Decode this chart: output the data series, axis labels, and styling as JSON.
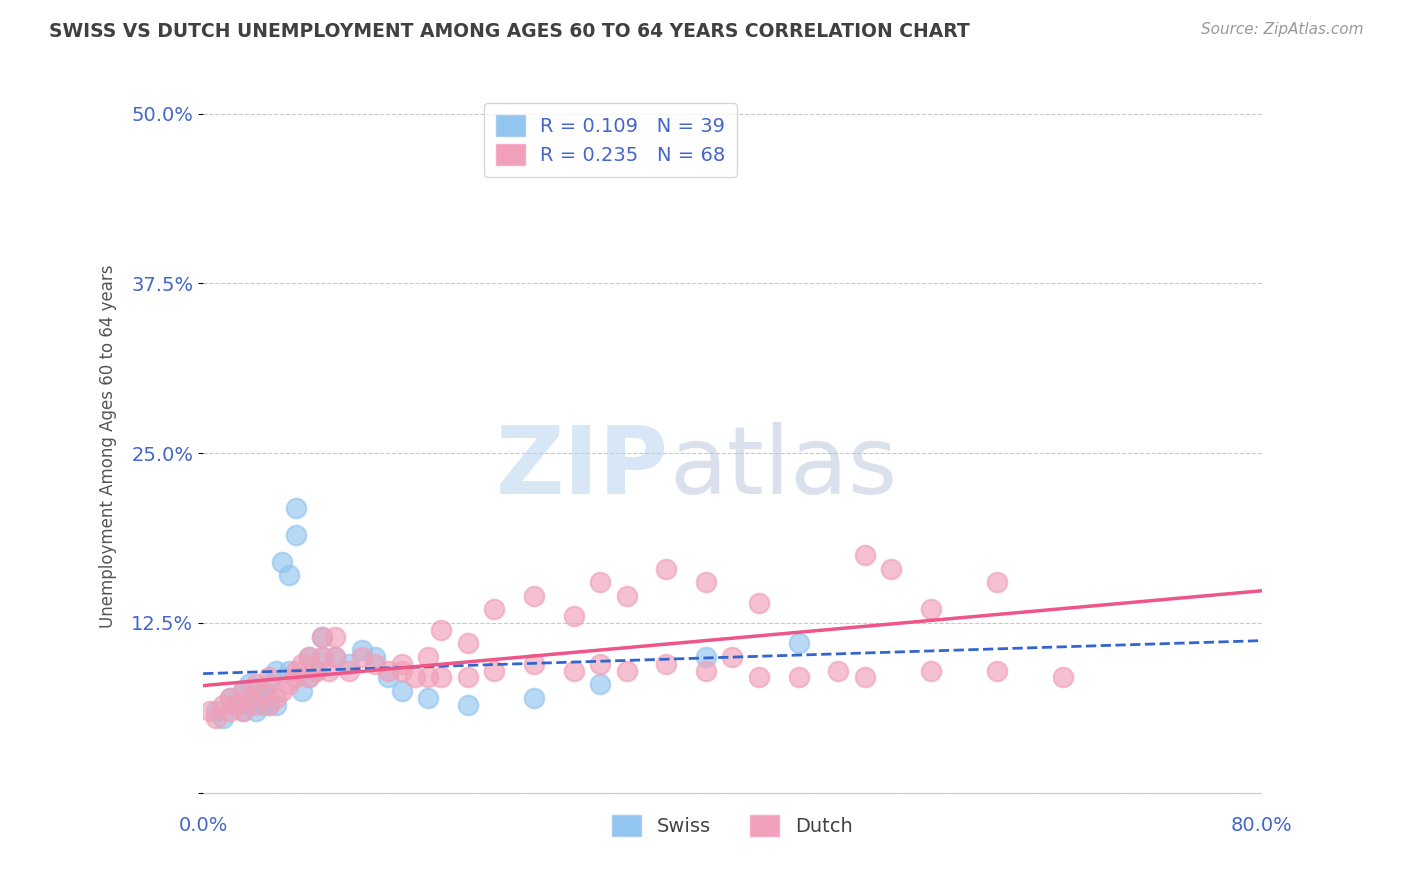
{
  "title": "SWISS VS DUTCH UNEMPLOYMENT AMONG AGES 60 TO 64 YEARS CORRELATION CHART",
  "source_text": "Source: ZipAtlas.com",
  "ylabel": "Unemployment Among Ages 60 to 64 years",
  "xlim": [
    0.0,
    0.8
  ],
  "ylim": [
    -0.01,
    0.52
  ],
  "yticks": [
    0.0,
    0.125,
    0.25,
    0.375,
    0.5
  ],
  "ytick_labels": [
    "",
    "12.5%",
    "25.0%",
    "37.5%",
    "50.0%"
  ],
  "swiss_color": "#92C5F0",
  "dutch_color": "#F0A0B8",
  "swiss_line_color": "#3366CC",
  "dutch_line_color": "#EE5588",
  "swiss_R": 0.109,
  "swiss_N": 39,
  "dutch_R": 0.235,
  "dutch_N": 68,
  "background_color": "#ffffff",
  "grid_color": "#bbbbbb",
  "title_color": "#404040",
  "watermark_zip_color": "#c8ddf0",
  "watermark_atlas_color": "#c0c8d8",
  "swiss_scatter_x": [
    0.01,
    0.015,
    0.02,
    0.025,
    0.03,
    0.03,
    0.035,
    0.035,
    0.04,
    0.04,
    0.045,
    0.045,
    0.05,
    0.05,
    0.055,
    0.055,
    0.06,
    0.065,
    0.065,
    0.07,
    0.07,
    0.075,
    0.08,
    0.08,
    0.085,
    0.09,
    0.09,
    0.1,
    0.11,
    0.12,
    0.13,
    0.14,
    0.15,
    0.17,
    0.2,
    0.25,
    0.3,
    0.38,
    0.45
  ],
  "swiss_scatter_y": [
    0.06,
    0.055,
    0.07,
    0.065,
    0.06,
    0.075,
    0.065,
    0.08,
    0.07,
    0.06,
    0.065,
    0.075,
    0.065,
    0.08,
    0.065,
    0.09,
    0.17,
    0.16,
    0.09,
    0.19,
    0.21,
    0.075,
    0.085,
    0.1,
    0.09,
    0.1,
    0.115,
    0.1,
    0.095,
    0.105,
    0.1,
    0.085,
    0.075,
    0.07,
    0.065,
    0.07,
    0.08,
    0.1,
    0.11
  ],
  "dutch_scatter_x": [
    0.005,
    0.01,
    0.015,
    0.02,
    0.02,
    0.025,
    0.03,
    0.03,
    0.035,
    0.04,
    0.04,
    0.045,
    0.05,
    0.05,
    0.055,
    0.06,
    0.065,
    0.07,
    0.07,
    0.075,
    0.08,
    0.08,
    0.085,
    0.09,
    0.09,
    0.095,
    0.1,
    0.1,
    0.11,
    0.12,
    0.13,
    0.14,
    0.15,
    0.16,
    0.17,
    0.18,
    0.2,
    0.22,
    0.25,
    0.28,
    0.3,
    0.32,
    0.35,
    0.38,
    0.4,
    0.42,
    0.45,
    0.48,
    0.5,
    0.55,
    0.6,
    0.65,
    0.25,
    0.3,
    0.35,
    0.38,
    0.42,
    0.5,
    0.52,
    0.6,
    0.28,
    0.32,
    0.18,
    0.22,
    0.15,
    0.17,
    0.2,
    0.55
  ],
  "dutch_scatter_y": [
    0.06,
    0.055,
    0.065,
    0.06,
    0.07,
    0.065,
    0.06,
    0.075,
    0.07,
    0.065,
    0.08,
    0.075,
    0.065,
    0.085,
    0.07,
    0.075,
    0.08,
    0.085,
    0.09,
    0.095,
    0.085,
    0.1,
    0.09,
    0.1,
    0.115,
    0.09,
    0.1,
    0.115,
    0.09,
    0.1,
    0.095,
    0.09,
    0.09,
    0.085,
    0.085,
    0.085,
    0.085,
    0.09,
    0.095,
    0.09,
    0.095,
    0.09,
    0.095,
    0.09,
    0.1,
    0.085,
    0.085,
    0.09,
    0.085,
    0.09,
    0.09,
    0.085,
    0.145,
    0.155,
    0.165,
    0.155,
    0.14,
    0.175,
    0.165,
    0.155,
    0.13,
    0.145,
    0.12,
    0.135,
    0.095,
    0.1,
    0.11,
    0.135
  ]
}
